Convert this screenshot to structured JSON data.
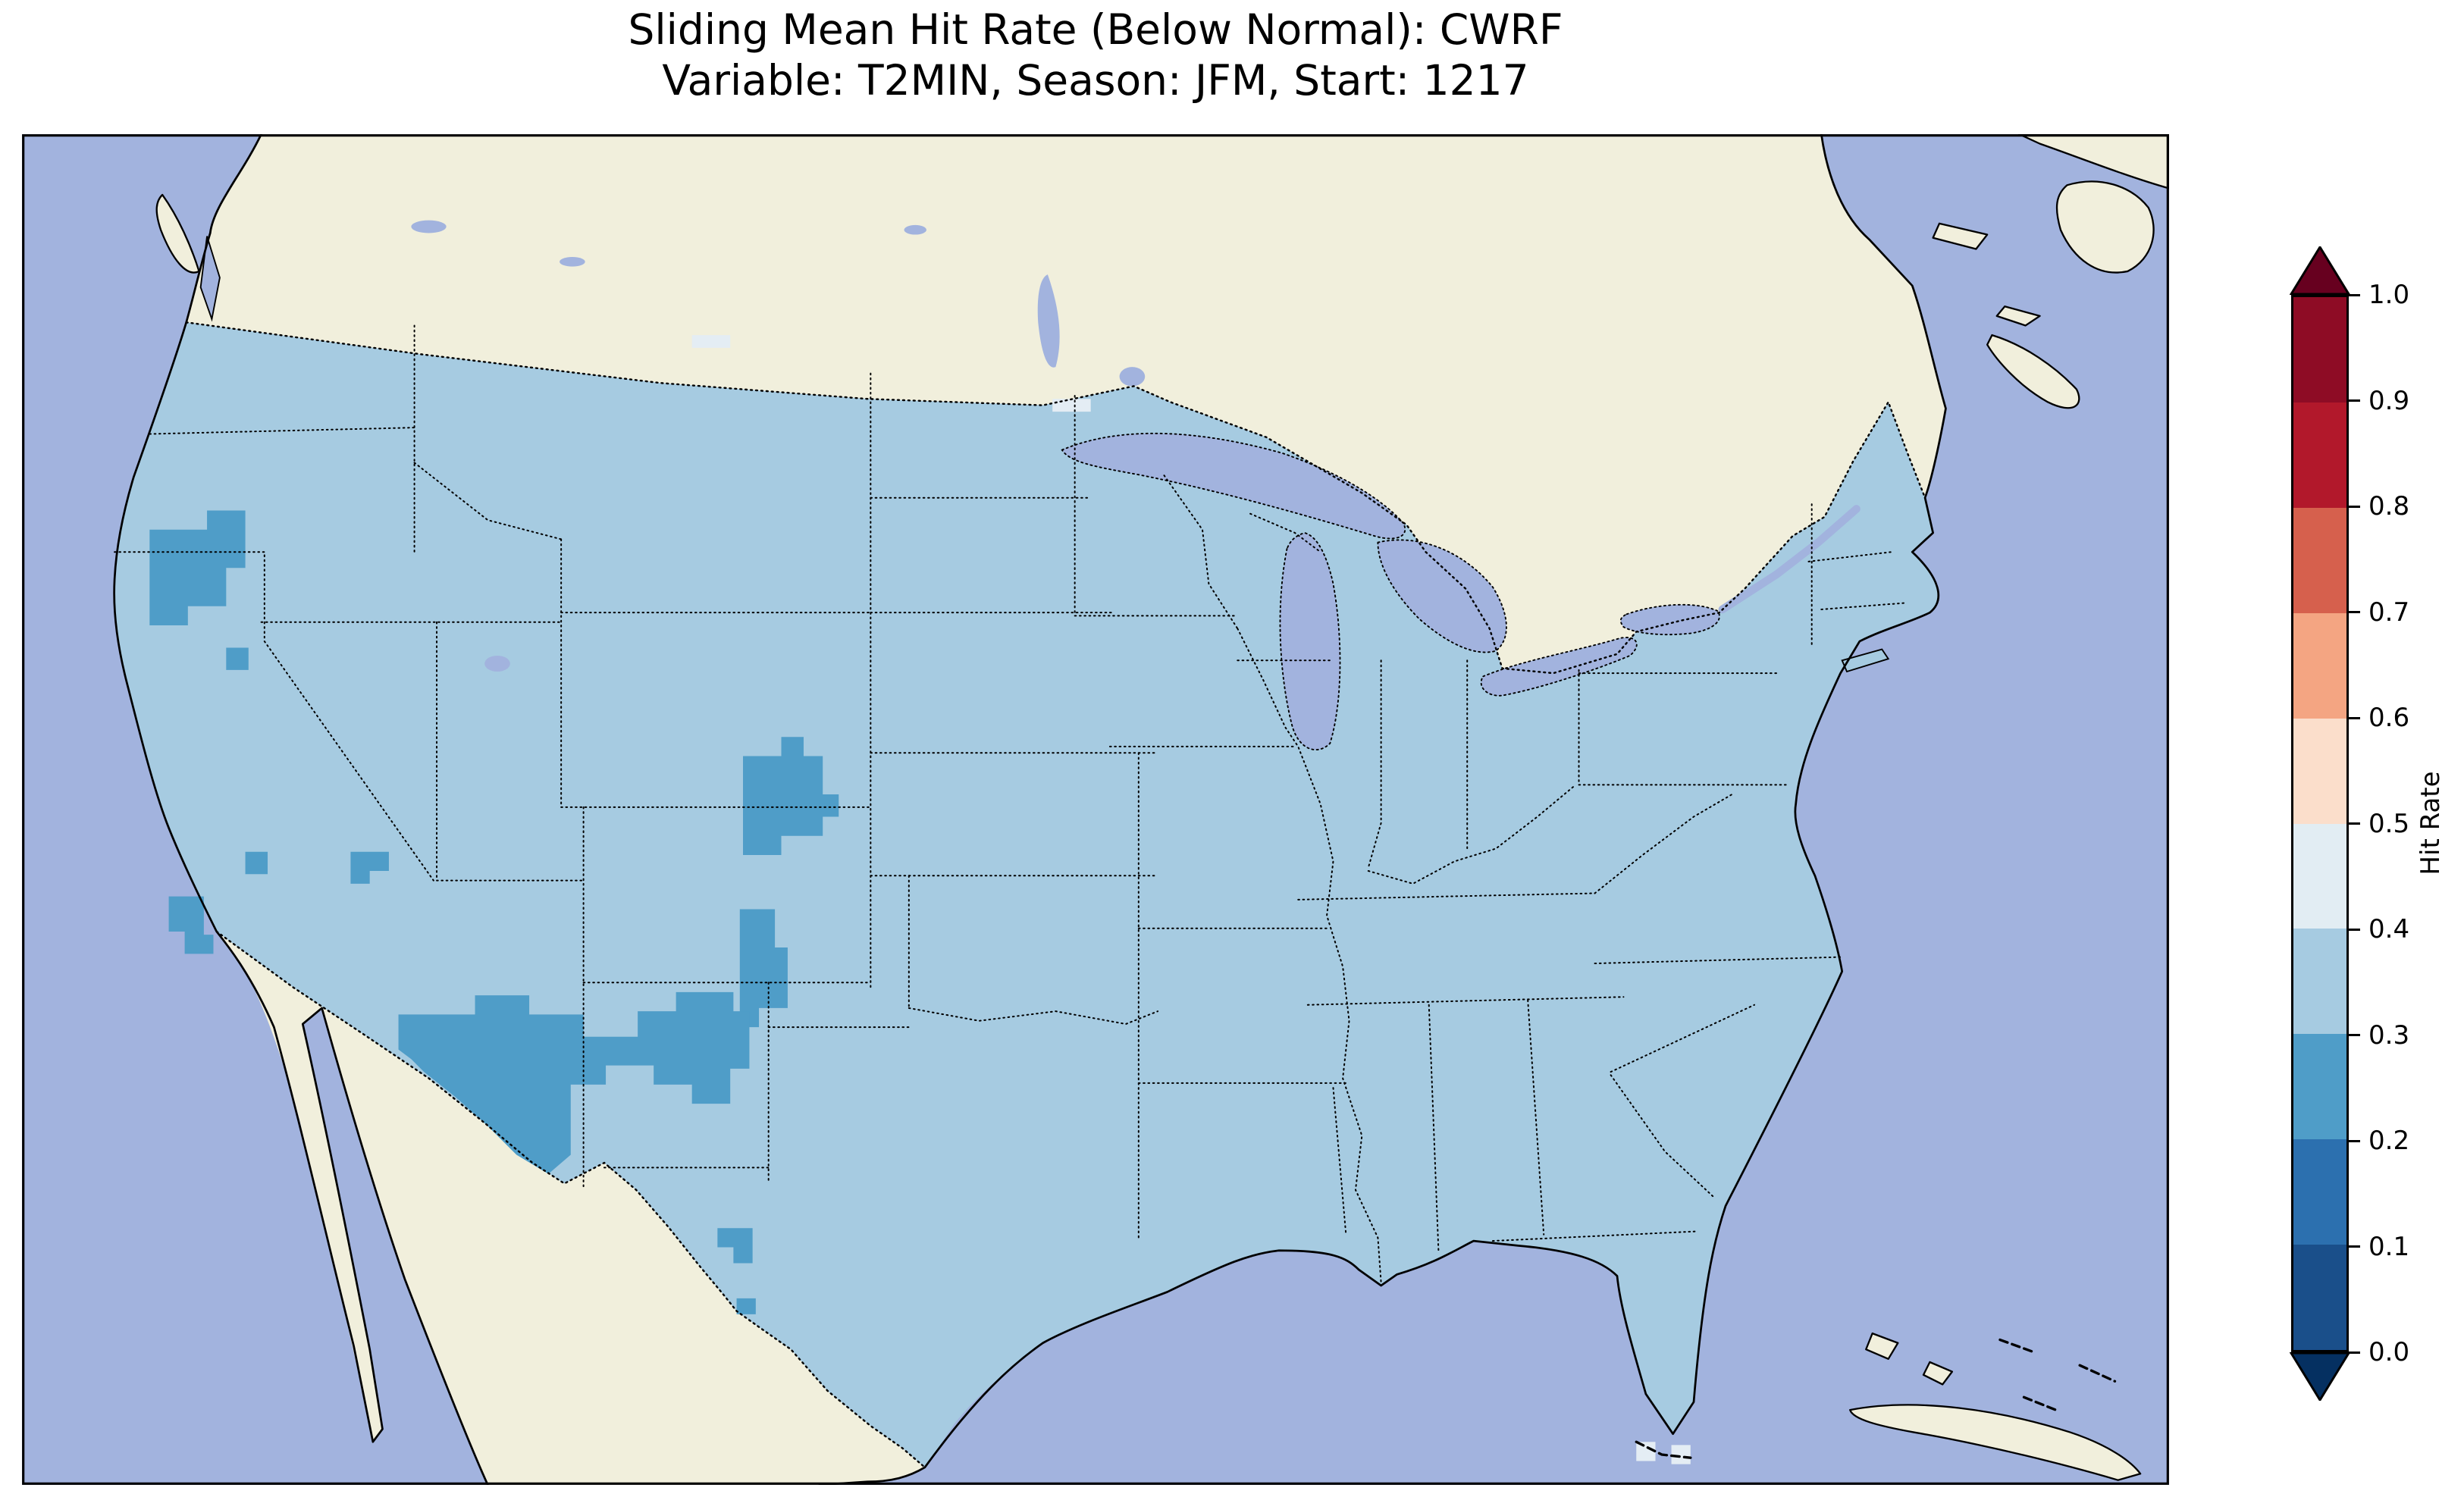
{
  "figure": {
    "title_line1": "Sliding Mean Hit Rate (Below Normal): CWRF",
    "title_line2": "Variable: T2MIN, Season: JFM, Start: 1217"
  },
  "colorbar": {
    "label": "Hit Rate",
    "ticks": [
      "1.0",
      "0.9",
      "0.8",
      "0.7",
      "0.6",
      "0.5",
      "0.4",
      "0.3",
      "0.2",
      "0.1",
      "0.0"
    ],
    "segments_top_to_bottom": [
      {
        "range": "0.9-1.0",
        "color": "#8e0c25"
      },
      {
        "range": "0.8-0.9",
        "color": "#b2182b"
      },
      {
        "range": "0.7-0.8",
        "color": "#d6604d"
      },
      {
        "range": "0.6-0.7",
        "color": "#f4a582"
      },
      {
        "range": "0.5-0.6",
        "color": "#fbdecb"
      },
      {
        "range": "0.4-0.5",
        "color": "#e2edf3"
      },
      {
        "range": "0.3-0.4",
        "color": "#a6cbe1"
      },
      {
        "range": "0.2-0.3",
        "color": "#4f9dc8"
      },
      {
        "range": "0.1-0.2",
        "color": "#2c70af"
      },
      {
        "range": "0.0-0.1",
        "color": "#1a4f8a"
      }
    ],
    "extend_over_color": "#67001f",
    "extend_under_color": "#053061"
  },
  "map": {
    "colors": {
      "ocean": "#a2b3de",
      "land": "#f1efdc",
      "us_fill_bin_0_3_0_4": "#a6cbe1",
      "patch_bin_0_2_0_3": "#4f9dc8",
      "patch_bin_0_4_0_5": "#e4edf4",
      "coastline": "#000000",
      "boundary": "#000000"
    }
  },
  "chart_data": {
    "type": "heatmap",
    "title": "Sliding Mean Hit Rate (Below Normal): CWRF",
    "subtitle": "Variable: T2MIN, Season: JFM, Start: 1217",
    "region": "Continental United States with surrounding Canada, Mexico, Pacific, Gulf of Mexico and Atlantic",
    "colorbar_label": "Hit Rate",
    "colorbar_ticks": [
      1.0,
      0.9,
      0.8,
      0.7,
      0.6,
      0.5,
      0.4,
      0.3,
      0.2,
      0.1,
      0.0
    ],
    "colormap": "red-blue diverging, discretized in 0.1 bins, extended at both ends",
    "values_by_area": [
      {
        "area": "most of CONUS",
        "hit_rate_bin": "0.3-0.4"
      },
      {
        "area": "southeast Arizona / southwest and central New Mexico / far west Texas",
        "hit_rate_bin": "0.2-0.3"
      },
      {
        "area": "central Utah",
        "hit_rate_bin": "0.2-0.3"
      },
      {
        "area": "northeast California / northwest Nevada",
        "hit_rate_bin": "0.2-0.3"
      },
      {
        "area": "southern California coastal cluster",
        "hit_rate_bin": "0.2-0.3"
      },
      {
        "area": "north-central New Mexico / southern Colorado strip",
        "hit_rate_bin": "0.2-0.3"
      },
      {
        "area": "Big Bend, Texas",
        "hit_rate_bin": "0.2-0.3"
      },
      {
        "area": "isolated cells off southern Florida tip and along the Canadian border",
        "hit_rate_bin": "0.4-0.5"
      }
    ]
  }
}
